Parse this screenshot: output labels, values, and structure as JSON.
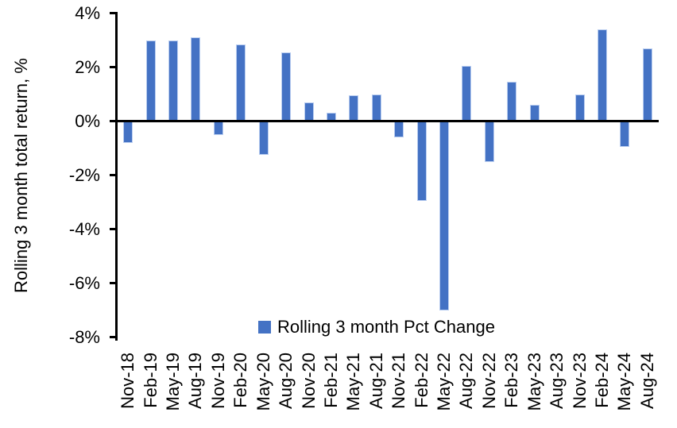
{
  "chart_data": {
    "type": "bar",
    "title": "",
    "xlabel": "",
    "ylabel": "Rolling 3 month total return, %",
    "legend": [
      "Rolling 3 month Pct Change"
    ],
    "legend_position": "bottom-center-inside-plot",
    "grid": false,
    "bar_color": "#4472C4",
    "axis_color": "#000000",
    "ylim": [
      -8,
      4
    ],
    "ytick_step": 2,
    "ytick_labels": [
      "4%",
      "2%",
      "0%",
      "-2%",
      "-4%",
      "-6%",
      "-8%"
    ],
    "categories": [
      "Nov-18",
      "Feb-19",
      "May-19",
      "Aug-19",
      "Nov-19",
      "Feb-20",
      "May-20",
      "Aug-20",
      "Nov-20",
      "Feb-21",
      "May-21",
      "Aug-21",
      "Nov-21",
      "Feb-22",
      "May-22",
      "Aug-22",
      "Nov-22",
      "Feb-23",
      "May-23",
      "Aug-23",
      "Nov-23",
      "Feb-24",
      "May-24",
      "Aug-24"
    ],
    "values": [
      -0.8,
      3.0,
      3.0,
      3.1,
      -0.5,
      2.85,
      -1.25,
      2.55,
      0.7,
      0.3,
      0.95,
      1.0,
      -0.6,
      -2.95,
      -7.0,
      2.05,
      -1.5,
      1.45,
      0.6,
      0.0,
      1.0,
      3.4,
      -0.95,
      2.7
    ]
  }
}
